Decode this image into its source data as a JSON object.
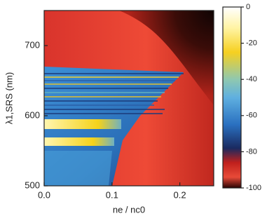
{
  "chart_data": {
    "type": "heatmap",
    "xlabel": "ne / nc0",
    "ylabel": "λ1,SRS (nm)",
    "xlim": [
      0,
      0.25
    ],
    "xticks": [
      {
        "value": 0,
        "label": "0.0"
      },
      {
        "value": 0.1,
        "label": "0.1"
      },
      {
        "value": 0.2,
        "label": "0.2"
      }
    ],
    "ylim": [
      500,
      750
    ],
    "yticks": [
      500,
      600,
      700
    ],
    "colorbar": {
      "clim": [
        -100,
        0
      ],
      "ticks": [
        0,
        -20,
        -40,
        -60,
        -80,
        -100
      ]
    }
  }
}
